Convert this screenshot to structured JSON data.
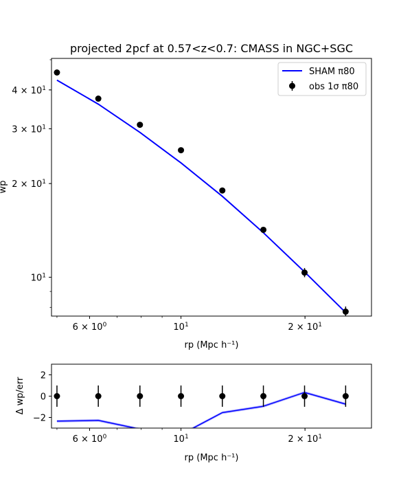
{
  "colors": {
    "model": "#0000ff",
    "observed": "#000000",
    "band": "#8080ff"
  },
  "chart_data": [
    {
      "type": "line",
      "title": "projected 2pcf at 0.57<z<0.7: CMASS in NGC+SGC",
      "xlabel": "rp (Mpc h⁻¹)",
      "ylabel": "wp",
      "xscale": "log",
      "yscale": "log",
      "xlim": [
        4.85,
        29.0
      ],
      "ylim": [
        7.5,
        50.5
      ],
      "x_ticks": [
        {
          "value": 6,
          "mant": "6 × 10",
          "exp": "0"
        },
        {
          "value": 10,
          "mant": "10",
          "exp": "1"
        },
        {
          "value": 20,
          "mant": "2 × 10",
          "exp": "1"
        }
      ],
      "y_ticks": [
        {
          "value": 10,
          "mant": "10",
          "exp": "1"
        },
        {
          "value": 20,
          "mant": "2 × 10",
          "exp": "1"
        },
        {
          "value": 30,
          "mant": "3 × 10",
          "exp": "1"
        },
        {
          "value": 40,
          "mant": "4 × 10",
          "exp": "1"
        }
      ],
      "legend": {
        "position": "top-right",
        "entries": [
          "SHAM π80",
          "obs 1σ π80"
        ]
      },
      "x": [
        5.0,
        6.3,
        7.95,
        10.0,
        12.6,
        15.85,
        19.95,
        25.1
      ],
      "series": [
        {
          "name": "SHAM π80",
          "kind": "line",
          "values": [
            43.0,
            36.0,
            29.2,
            23.3,
            18.2,
            13.9,
            10.4,
            7.7
          ]
        },
        {
          "name": "obs 1σ π80",
          "kind": "errorbar",
          "values": [
            45.5,
            37.5,
            30.9,
            25.6,
            19.0,
            14.2,
            10.35,
            7.75
          ],
          "errors": [
            0.4,
            0.4,
            0.35,
            0.35,
            0.35,
            0.3,
            0.35,
            0.3
          ]
        }
      ]
    },
    {
      "type": "line",
      "title": "",
      "xlabel": "rp (Mpc h⁻¹)",
      "ylabel": "Δ wp/err",
      "xscale": "log",
      "xlim": [
        4.85,
        29.0
      ],
      "ylim": [
        -3.0,
        3.0
      ],
      "x_ticks": [
        {
          "value": 6,
          "mant": "6 × 10",
          "exp": "0"
        },
        {
          "value": 10,
          "mant": "10",
          "exp": "1"
        },
        {
          "value": 20,
          "mant": "2 × 10",
          "exp": "1"
        }
      ],
      "y_ticks": [
        {
          "value": 2,
          "label": "2"
        },
        {
          "value": 0,
          "label": "0"
        },
        {
          "value": -2,
          "label": "−2"
        }
      ],
      "x": [
        5.0,
        6.3,
        7.95,
        10.0,
        12.6,
        15.85,
        19.95,
        25.1
      ],
      "series": [
        {
          "kind": "band",
          "values": [
            -2.35,
            -2.28,
            -3.1,
            -3.6,
            -1.55,
            -0.95,
            0.35,
            -0.75
          ]
        },
        {
          "kind": "errorbar",
          "values": [
            0,
            0,
            0,
            0,
            0,
            0,
            0,
            0
          ],
          "errors": [
            1,
            1,
            1,
            1,
            1,
            1,
            1,
            1
          ]
        }
      ]
    }
  ]
}
